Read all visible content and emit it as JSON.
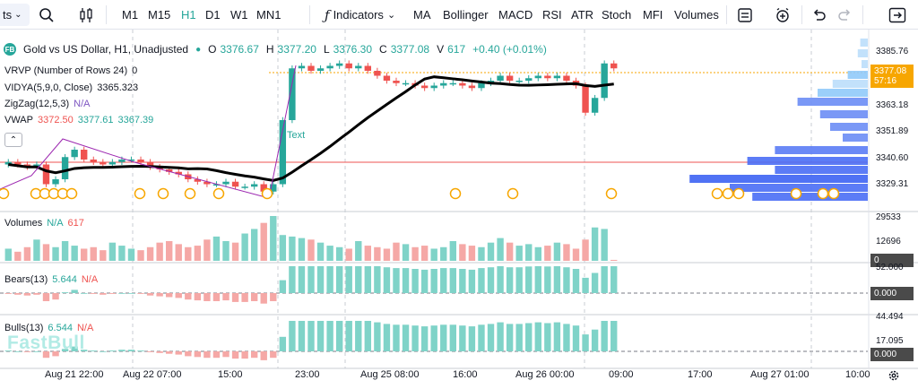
{
  "toolbar": {
    "symbol_fragment": "ts",
    "timeframes": [
      {
        "label": "M1",
        "active": false
      },
      {
        "label": "M15",
        "active": false
      },
      {
        "label": "H1",
        "active": true
      },
      {
        "label": "D1",
        "active": false
      },
      {
        "label": "W1",
        "active": false
      },
      {
        "label": "MN1",
        "active": false
      }
    ],
    "indicators_label": "Indicators",
    "quick_indicators": [
      "MA",
      "Bollinger",
      "MACD",
      "RSI",
      "ATR",
      "Stoch",
      "MFI",
      "Volumes"
    ]
  },
  "chart": {
    "logo_text": "FB",
    "title": "Gold vs US Dollar, H1, Unadjusted",
    "ohlc": {
      "o_label": "O",
      "o": "3376.67",
      "h_label": "H",
      "h": "3377.20",
      "l_label": "L",
      "l": "3376.30",
      "c_label": "C",
      "c": "3377.08",
      "v_label": "V",
      "v": "617",
      "change": "+0.40 (+0.01%)"
    },
    "indicators": [
      {
        "name": "VRVP (Number of Rows 24)",
        "values": [
          "0"
        ]
      },
      {
        "name": "VIDYA(5,9,0, Close)",
        "values": [
          "3365.323"
        ]
      },
      {
        "name": "ZigZag(12,5,3)",
        "values": [
          "N/A"
        ]
      },
      {
        "name": "VWAP",
        "values": [
          "3372.50",
          "3377.61",
          "3367.39"
        ]
      }
    ],
    "annotation_text": "Text",
    "price_axis": [
      "3385.76",
      "3363.18",
      "3351.89",
      "3340.60",
      "3329.31"
    ],
    "current_price": "3377.08",
    "countdown": "57:16",
    "colors": {
      "up": "#26a69a",
      "down": "#ef5350",
      "vwap": "#000000",
      "zigzag": "#9c27b0",
      "profile": "#2962ff"
    }
  },
  "volumes_pane": {
    "title": "Volumes",
    "values": [
      "N/A",
      "617"
    ],
    "axis": [
      "29533",
      "12696"
    ],
    "badge": "0"
  },
  "bears_pane": {
    "title": "Bears(13)",
    "values": [
      "5.644",
      "N/A"
    ],
    "axis_top": "52.000",
    "badge": "0.000"
  },
  "bulls_pane": {
    "title": "Bulls(13)",
    "values": [
      "6.544",
      "N/A"
    ],
    "axis_top": "44.494",
    "axis": [
      "17.095"
    ],
    "badge": "0.000"
  },
  "watermark": "FastBull",
  "time_axis": [
    "Aug 21 22:00",
    "Aug 22 07:00",
    "15:00",
    "23:00",
    "Aug 25 08:00",
    "16:00",
    "Aug 26 00:00",
    "09:00",
    "17:00",
    "Aug 27 01:00",
    "10:00"
  ],
  "chart_data": {
    "type": "candlestick",
    "timeframe": "H1",
    "price_range": [
      3320,
      3392
    ],
    "price_ticks": [
      3385.76,
      3363.18,
      3351.89,
      3340.6,
      3329.31
    ],
    "closes": [
      3339,
      3338,
      3337,
      3338,
      3330,
      3332,
      3341,
      3344,
      3340,
      3339,
      3338,
      3339,
      3340,
      3340,
      3339,
      3337,
      3336,
      3335,
      3334,
      3332,
      3331,
      3330,
      3330,
      3331,
      3329,
      3329,
      3330,
      3327,
      3330,
      3356,
      3377,
      3378,
      3376,
      3377,
      3378,
      3379,
      3377,
      3378,
      3376,
      3374,
      3372,
      3371,
      3371,
      3370,
      3369,
      3370,
      3371,
      3371,
      3370,
      3369,
      3371,
      3372,
      3374,
      3372,
      3372,
      3373,
      3374,
      3373,
      3374,
      3372,
      3370,
      3359,
      3365,
      3379,
      3377
    ],
    "volumes_max": 29533,
    "volumes": [
      8000,
      6000,
      9000,
      14000,
      11000,
      9000,
      13000,
      10000,
      8000,
      9000,
      7000,
      12000,
      10000,
      8000,
      7000,
      9000,
      12000,
      13000,
      11000,
      9000,
      10000,
      14000,
      16000,
      13000,
      12000,
      18000,
      21000,
      25000,
      29533,
      17000,
      16000,
      15000,
      14000,
      12000,
      10000,
      9000,
      8000,
      13000,
      10000,
      9000,
      8000,
      12000,
      11000,
      9000,
      10000,
      8000,
      9000,
      13000,
      11000,
      10000,
      9000,
      12000,
      15000,
      12000,
      10000,
      11000,
      9000,
      10000,
      12000,
      11000,
      8000,
      14000,
      22000,
      21000,
      617
    ],
    "bears_max": 52,
    "bulls_max": 44.494
  }
}
